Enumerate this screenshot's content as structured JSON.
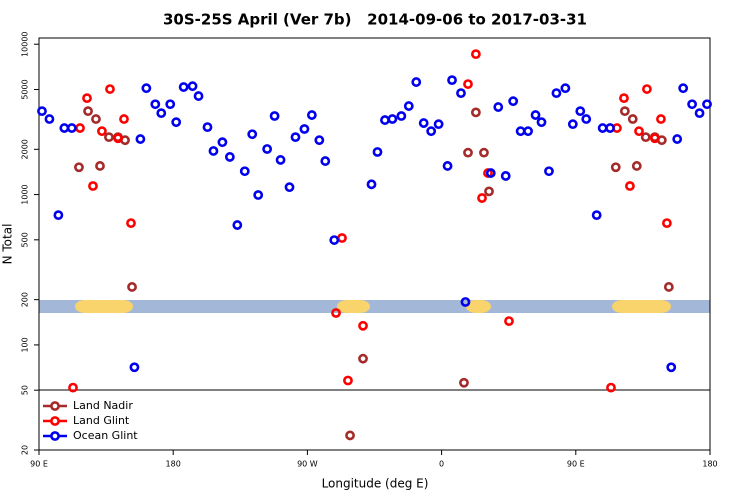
{
  "chart_data": {
    "type": "scatter",
    "title": "30S-25S April (Ver 7b)   2014-09-06 to 2017-03-31",
    "x_label": "Longitude (deg E)",
    "y_label": "N Total",
    "xlim": [
      90,
      540
    ],
    "ylim": [
      20,
      11000
    ],
    "y_log": true,
    "xticks": [
      {
        "value": 90,
        "label": "90 E"
      },
      {
        "value": 180,
        "label": "180"
      },
      {
        "value": 270,
        "label": "90 W"
      },
      {
        "value": 360,
        "label": "0"
      },
      {
        "value": 450,
        "label": "90 E"
      },
      {
        "value": 540,
        "label": "180"
      }
    ],
    "yticks": [
      20,
      50,
      100,
      200,
      500,
      1000,
      2000,
      5000,
      10000
    ],
    "legend": "lower left",
    "series": [
      {
        "name": "Land Nadir",
        "color": "#a52a2a",
        "x": [
          116.8,
          122.9,
          128.2,
          130.9,
          136.9,
          143,
          147.7,
          152.4,
          298.6,
          307.3,
          375,
          377.7,
          383,
          388.4,
          391.8,
          476.8,
          482.9,
          488.2,
          490.9,
          496.9,
          503,
          507.7,
          512.4
        ],
        "values": [
          1520,
          3590,
          3180,
          1550,
          2410,
          2410,
          2300,
          243,
          25,
          81,
          56,
          1900,
          3520,
          1900,
          1050,
          1520,
          3590,
          3180,
          1550,
          2410,
          2410,
          2300,
          243
        ]
      },
      {
        "name": "Land Glint",
        "color": "#ff0000",
        "x": [
          112.8,
          117.5,
          122.2,
          126.2,
          132.2,
          137.6,
          143,
          147,
          151.7,
          289.2,
          293.2,
          297.2,
          307.3,
          377.7,
          383,
          387.1,
          391.1,
          405.2,
          473.6,
          477.6,
          482.3,
          486.3,
          492.4,
          497.7,
          503,
          507.1,
          511.1
        ],
        "values": [
          52,
          2770,
          4380,
          1140,
          2640,
          5030,
          2370,
          3180,
          646,
          163,
          514,
          58,
          134,
          5430,
          8590,
          948,
          1390,
          144,
          52,
          2770,
          4380,
          1140,
          2640,
          5030,
          2370,
          3180,
          646
        ]
      },
      {
        "name": "Ocean Glint",
        "color": "#0000ee",
        "x": [
          92,
          97,
          103,
          107,
          112,
          154,
          158,
          162,
          168,
          172,
          178,
          182,
          187,
          193,
          197,
          203,
          207,
          213,
          218,
          223,
          228,
          233,
          237,
          243,
          248,
          252,
          258,
          262,
          268,
          273,
          278,
          282,
          288,
          313,
          317,
          322,
          327,
          333,
          338,
          343,
          348,
          353,
          358,
          364,
          367,
          373,
          376,
          393,
          398,
          403,
          408,
          413,
          418,
          423,
          427,
          432,
          437,
          443,
          448,
          453,
          457,
          464,
          468,
          473,
          514,
          518,
          522,
          528,
          533,
          538
        ],
        "values": [
          3590,
          3180,
          730,
          2770,
          2770,
          71,
          2340,
          5100,
          3990,
          3480,
          3990,
          3030,
          5190,
          5260,
          4520,
          2810,
          1950,
          2230,
          1780,
          627,
          1430,
          2520,
          993,
          2010,
          3330,
          1700,
          1120,
          2410,
          2730,
          3380,
          2300,
          1670,
          498,
          1170,
          1920,
          3130,
          3180,
          3330,
          3880,
          5600,
          2990,
          2640,
          2940,
          1550,
          5770,
          4730,
          193,
          1390,
          3820,
          1330,
          4180,
          2640,
          2640,
          3380,
          3030,
          1430,
          4730,
          5100,
          2940,
          3590,
          3180,
          730,
          2770,
          2770,
          71,
          2340,
          5100,
          3990,
          3480,
          3990
        ]
      }
    ]
  }
}
